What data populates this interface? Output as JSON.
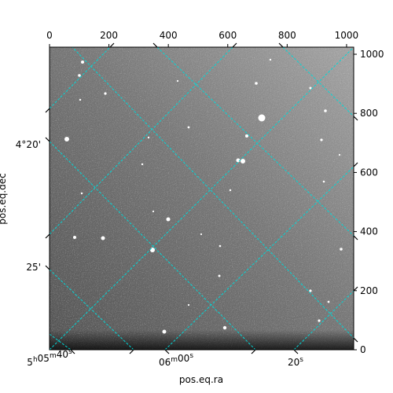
{
  "chart_data": {
    "type": "image",
    "xlabel": "pos.eq.ra",
    "ylabel": "pos.eq.dec",
    "pixel_axes": {
      "x_ticks": [
        "0",
        "200",
        "400",
        "600",
        "800",
        "1000"
      ],
      "x_tick_values": [
        0,
        200,
        400,
        600,
        800,
        1000
      ],
      "y_ticks": [
        "0",
        "200",
        "400",
        "600",
        "800",
        "1000"
      ],
      "y_tick_values": [
        0,
        200,
        400,
        600,
        800,
        1000
      ],
      "xlim": [
        0,
        1024
      ],
      "ylim": [
        0,
        1024
      ]
    },
    "world_axes": {
      "ra_ticks": [
        {
          "h": "5",
          "m": "05",
          "s": "40",
          "text": "5h05m40s"
        },
        {
          "h": "",
          "m": "06",
          "s": "00",
          "text": "06m00s"
        },
        {
          "h": "",
          "m": "",
          "s": "20",
          "text": "20s"
        }
      ],
      "dec_ticks": [
        "4°20'",
        "25'"
      ]
    },
    "grid": true,
    "grid_color": "#00d8d8",
    "colormap": "gray",
    "background_level": 0.5
  }
}
